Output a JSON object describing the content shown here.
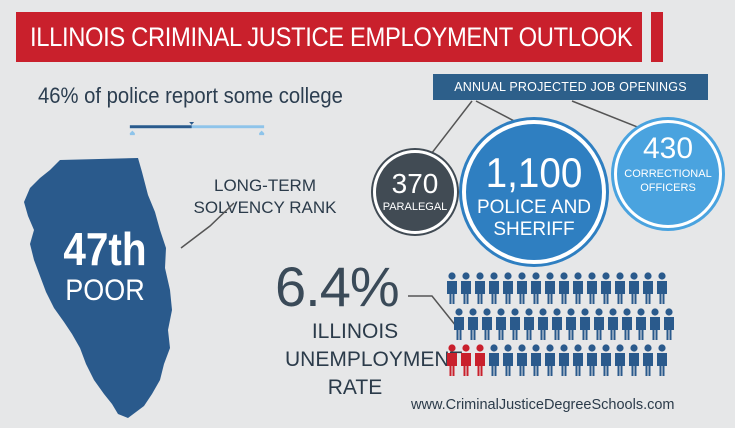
{
  "title": "ILLINOIS CRIMINAL JUSTICE EMPLOYMENT OUTLOOK",
  "education": {
    "text": "46% of police report some college",
    "percent": 46
  },
  "solvency": {
    "label": "LONG-TERM\nSOLVENCY RANK",
    "rank": "47th",
    "rating": "POOR"
  },
  "job_openings": {
    "header": "ANNUAL PROJECTED JOB OPENINGS",
    "paralegal": {
      "value": "370",
      "label": "PARALEGAL"
    },
    "police": {
      "value": "1,100",
      "label": "POLICE AND\nSHERIFF"
    },
    "correctional": {
      "value": "430",
      "label": "CORRECTIONAL\nOFFICERS"
    }
  },
  "unemployment": {
    "value": "6.4%",
    "label": "ILLINOIS\nUNEMPLOYMENT\nRATE",
    "people_total": 48,
    "people_highlighted": 3
  },
  "website": "www.CriminalJusticeDegreeSchools.com",
  "colors": {
    "background": "#e6e7e8",
    "title_red": "#c9202c",
    "navy": "#2d5f8a",
    "state_blue": "#2a5a8c",
    "light_blue": "#8ec4ea",
    "police_blue": "#2f7fc1",
    "corrections_blue": "#4aa3df",
    "paralegal_gray": "#414b54",
    "highlight_red": "#c9202c"
  }
}
